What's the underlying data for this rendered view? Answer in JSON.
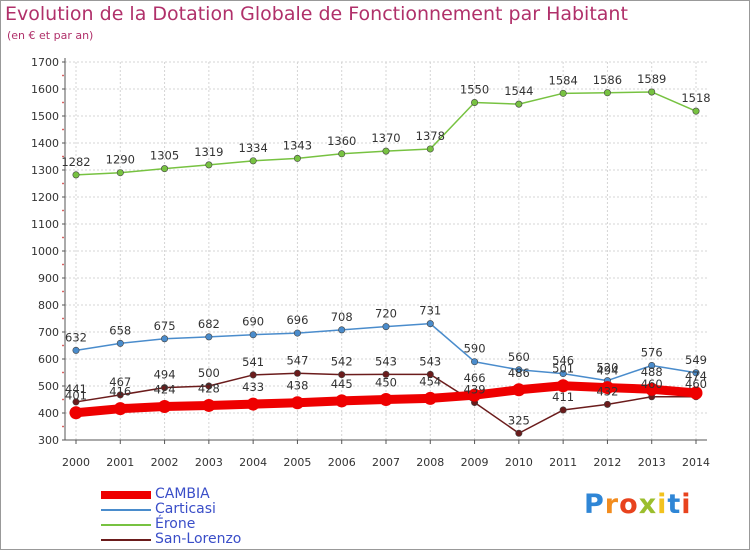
{
  "header": {
    "title": "Evolution de la Dotation Globale de Fonctionnement par Habitant",
    "subtitle": "(en € et par an)"
  },
  "chart_data": {
    "type": "line",
    "title": "Evolution de la Dotation Globale de Fonctionnement par Habitant",
    "subtitle": "(en € et par an)",
    "x": [
      "2000",
      "2001",
      "2002",
      "2003",
      "2004",
      "2005",
      "2006",
      "2007",
      "2008",
      "2009",
      "2010",
      "2011",
      "2012",
      "2013",
      "2014"
    ],
    "ylim": [
      300,
      1700
    ],
    "yticks": [
      300,
      400,
      500,
      600,
      700,
      800,
      900,
      1000,
      1100,
      1200,
      1300,
      1400,
      1500,
      1600,
      1700
    ],
    "grid": true,
    "legend_position": "bottom-left",
    "series": [
      {
        "name": "CAMBIA",
        "color": "#ee0000",
        "values": [
          401,
          416,
          424,
          428,
          433,
          438,
          445,
          450,
          454,
          466,
          486,
          501,
          494,
          488,
          474
        ]
      },
      {
        "name": "Carticasi",
        "color": "#4a8ccc",
        "values": [
          632,
          658,
          675,
          682,
          690,
          696,
          708,
          720,
          731,
          590,
          560,
          546,
          520,
          576,
          549
        ]
      },
      {
        "name": "Érone",
        "color": "#77c241",
        "values": [
          1282,
          1290,
          1305,
          1319,
          1334,
          1343,
          1360,
          1370,
          1378,
          1550,
          1544,
          1584,
          1586,
          1589,
          1518
        ]
      },
      {
        "name": "San-Lorenzo",
        "color": "#6b1c1c",
        "values": [
          441,
          467,
          494,
          500,
          541,
          547,
          542,
          543,
          543,
          439,
          325,
          411,
          432,
          460,
          460
        ]
      }
    ]
  },
  "logo": {
    "letters": [
      "P",
      "r",
      "o",
      "x",
      "i",
      "t",
      "i"
    ],
    "colors": [
      "#2f86d6",
      "#f28c1e",
      "#e8431e",
      "#9bbe2d",
      "#f2c21e",
      "#2f86d6",
      "#e8431e"
    ]
  }
}
